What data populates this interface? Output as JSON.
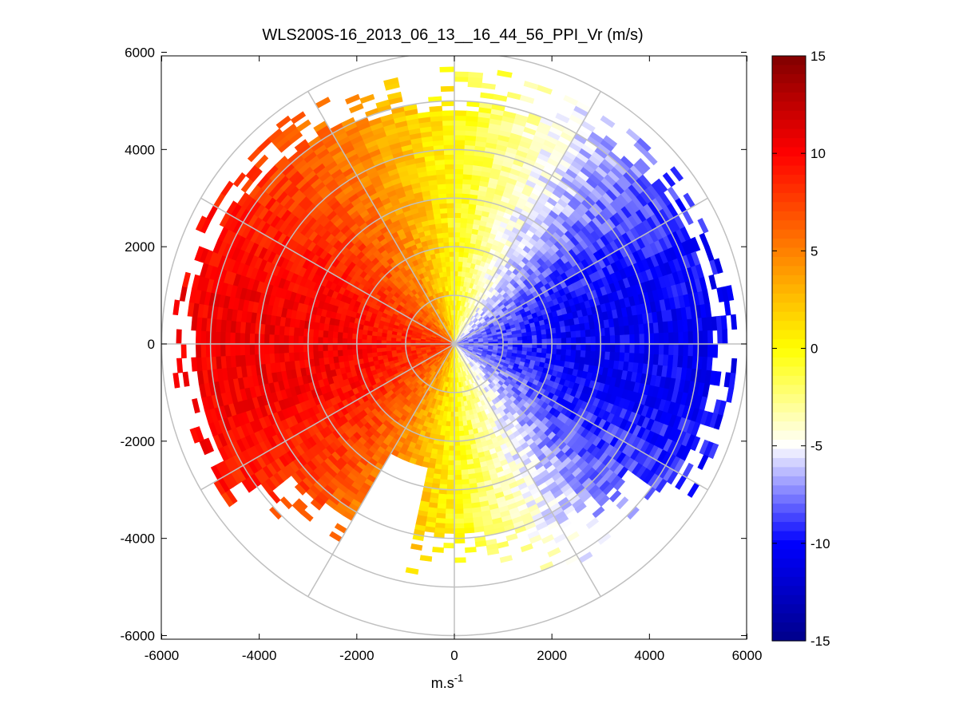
{
  "chart_data": {
    "type": "heatmap",
    "subtype": "polar-ppi",
    "title": "WLS200S-16_2013_06_13__16_44_56_PPI_Vr (m/s)",
    "xlabel": "m.s",
    "xlabel_superscript": "-1",
    "ylabel": "",
    "xlim": [
      -6000,
      6000
    ],
    "ylim": [
      -6000,
      6000
    ],
    "xticks": [
      "-6000",
      "-4000",
      "-2000",
      "0",
      "2000",
      "4000",
      "6000"
    ],
    "yticks": [
      "6000",
      "4000",
      "2000",
      "0",
      "-2000",
      "-4000",
      "-6000"
    ],
    "xtick_values": [
      -6000,
      -4000,
      -2000,
      0,
      2000,
      4000,
      6000
    ],
    "ytick_values": [
      6000,
      4000,
      2000,
      0,
      -2000,
      -4000,
      -6000
    ],
    "polar_grid": {
      "range_rings_m": [
        1000,
        2000,
        3000,
        4000,
        5000,
        6000
      ],
      "radial_spokes_deg": [
        0,
        30,
        60,
        90,
        120,
        150,
        180,
        210,
        240,
        270,
        300,
        330
      ]
    },
    "colorbar": {
      "min": -15,
      "max": 15,
      "ticks": [
        "15",
        "10",
        "5",
        "0",
        "-5",
        "-10",
        "-15"
      ],
      "tick_values": [
        15,
        10,
        5,
        0,
        -5,
        -10,
        -15
      ],
      "colors": [
        "#00008b",
        "#0000ff",
        "#ffffff",
        "#ffff00",
        "#ff8000",
        "#ff0000",
        "#800000"
      ]
    },
    "field_description_values": {
      "west_max_velocity": 10,
      "east_min_velocity": -10,
      "data_extent_m": 5800
    }
  }
}
